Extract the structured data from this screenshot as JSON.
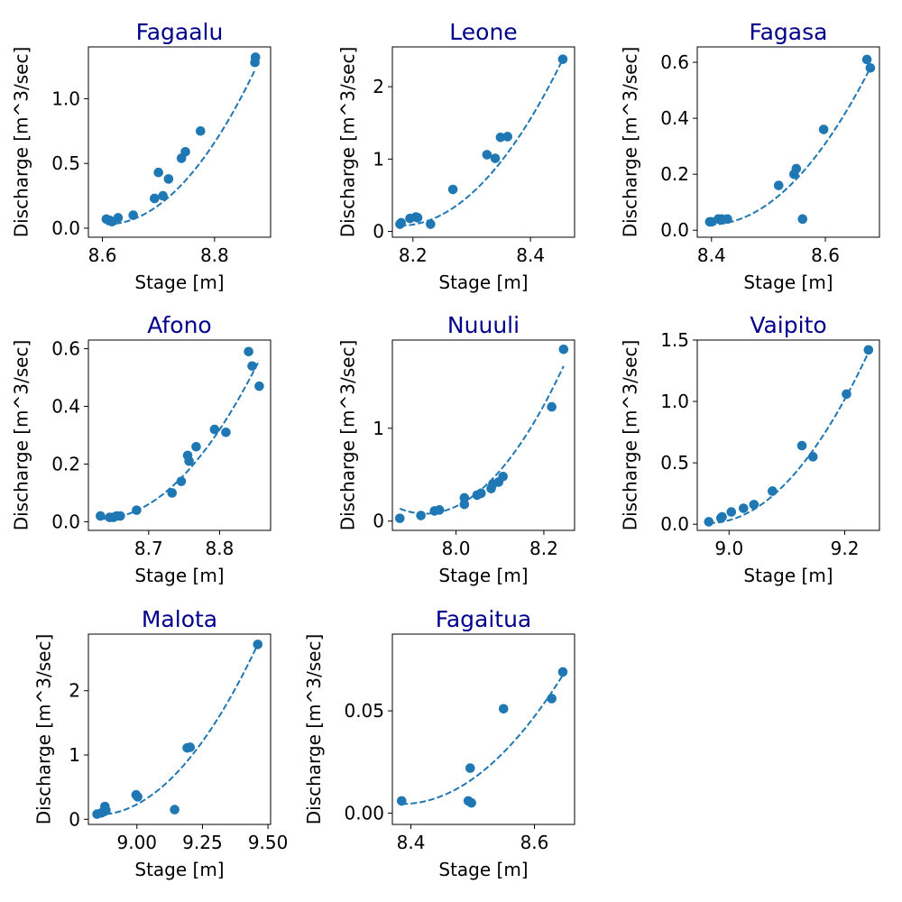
{
  "colors": {
    "marker": "#1f77b4",
    "fit": "#1f77b4",
    "title": "#00008b"
  },
  "chart_data": [
    {
      "type": "scatter",
      "title": "Fagaalu",
      "xlabel": "Stage [m]",
      "ylabel": "Discharge [m^3/sec]",
      "xlim": [
        8.575,
        8.9
      ],
      "ylim": [
        -0.07,
        1.4
      ],
      "xticks": [
        8.6,
        8.8
      ],
      "xtick_labels": [
        "8.6",
        "8.8"
      ],
      "yticks": [
        0.0,
        0.5,
        1.0
      ],
      "ytick_labels": [
        "0.0",
        "0.5",
        "1.0"
      ],
      "points": [
        [
          8.607,
          0.07
        ],
        [
          8.613,
          0.06
        ],
        [
          8.617,
          0.05
        ],
        [
          8.628,
          0.08
        ],
        [
          8.655,
          0.1
        ],
        [
          8.693,
          0.23
        ],
        [
          8.7,
          0.43
        ],
        [
          8.708,
          0.25
        ],
        [
          8.718,
          0.38
        ],
        [
          8.741,
          0.54
        ],
        [
          8.748,
          0.59
        ],
        [
          8.775,
          0.75
        ],
        [
          8.872,
          1.28
        ],
        [
          8.873,
          1.32
        ]
      ],
      "fit": {
        "type": "quadratic",
        "x_range": [
          8.607,
          8.873
        ],
        "y_range": [
          0.03,
          1.23
        ]
      }
    },
    {
      "type": "scatter",
      "title": "Leone",
      "xlabel": "Stage [m]",
      "ylabel": "Discharge [m^3/sec]",
      "xlim": [
        8.165,
        8.475
      ],
      "ylim": [
        -0.08,
        2.55
      ],
      "xticks": [
        8.2,
        8.4
      ],
      "xtick_labels": [
        "8.2",
        "8.4"
      ],
      "yticks": [
        0,
        1,
        2
      ],
      "ytick_labels": [
        "0",
        "1",
        "2"
      ],
      "points": [
        [
          8.178,
          0.1
        ],
        [
          8.18,
          0.12
        ],
        [
          8.195,
          0.18
        ],
        [
          8.205,
          0.2
        ],
        [
          8.208,
          0.19
        ],
        [
          8.23,
          0.1
        ],
        [
          8.268,
          0.58
        ],
        [
          8.326,
          1.06
        ],
        [
          8.34,
          1.01
        ],
        [
          8.349,
          1.3
        ],
        [
          8.361,
          1.31
        ],
        [
          8.455,
          2.38
        ]
      ],
      "fit": {
        "type": "quadratic",
        "x_range": [
          8.178,
          8.455
        ],
        "y_range": [
          0.08,
          2.38
        ]
      }
    },
    {
      "type": "scatter",
      "title": "Fagasa",
      "xlabel": "Stage [m]",
      "ylabel": "Discharge [m^3/sec]",
      "xlim": [
        8.375,
        8.695
      ],
      "ylim": [
        -0.025,
        0.655
      ],
      "xticks": [
        8.4,
        8.6
      ],
      "xtick_labels": [
        "8.4",
        "8.6"
      ],
      "yticks": [
        0.0,
        0.2,
        0.4,
        0.6
      ],
      "ytick_labels": [
        "0.0",
        "0.2",
        "0.4",
        "0.6"
      ],
      "points": [
        [
          8.397,
          0.03
        ],
        [
          8.4,
          0.03
        ],
        [
          8.412,
          0.04
        ],
        [
          8.418,
          0.04
        ],
        [
          8.428,
          0.04
        ],
        [
          8.518,
          0.16
        ],
        [
          8.545,
          0.2
        ],
        [
          8.549,
          0.22
        ],
        [
          8.56,
          0.04
        ],
        [
          8.597,
          0.36
        ],
        [
          8.673,
          0.61
        ],
        [
          8.679,
          0.58
        ]
      ],
      "fit": {
        "type": "quadratic",
        "x_range": [
          8.397,
          8.679
        ],
        "y_range": [
          0.02,
          0.58
        ]
      }
    },
    {
      "type": "scatter",
      "title": "Afono",
      "xlabel": "Stage [m]",
      "ylabel": "Discharge [m^3/sec]",
      "xlim": [
        8.615,
        8.872
      ],
      "ylim": [
        -0.03,
        0.63
      ],
      "xticks": [
        8.7,
        8.8
      ],
      "xtick_labels": [
        "8.7",
        "8.8"
      ],
      "yticks": [
        0.0,
        0.2,
        0.4,
        0.6
      ],
      "ytick_labels": [
        "0.0",
        "0.2",
        "0.4",
        "0.6"
      ],
      "points": [
        [
          8.632,
          0.02
        ],
        [
          8.645,
          0.015
        ],
        [
          8.65,
          0.015
        ],
        [
          8.655,
          0.02
        ],
        [
          8.66,
          0.02
        ],
        [
          8.683,
          0.04
        ],
        [
          8.733,
          0.1
        ],
        [
          8.746,
          0.14
        ],
        [
          8.755,
          0.23
        ],
        [
          8.757,
          0.21
        ],
        [
          8.767,
          0.26
        ],
        [
          8.793,
          0.32
        ],
        [
          8.809,
          0.31
        ],
        [
          8.841,
          0.59
        ],
        [
          8.846,
          0.54
        ],
        [
          8.856,
          0.47
        ]
      ],
      "fit": {
        "type": "quadratic",
        "x_range": [
          8.632,
          8.856
        ],
        "y_range": [
          0.01,
          0.56
        ]
      }
    },
    {
      "type": "scatter",
      "title": "Nuuuli",
      "xlabel": "Stage [m]",
      "ylabel": "Discharge [m^3/sec]",
      "xlim": [
        7.855,
        8.27
      ],
      "ylim": [
        -0.1,
        1.95
      ],
      "xticks": [
        8.0,
        8.2
      ],
      "xtick_labels": [
        "8.0",
        "8.2"
      ],
      "yticks": [
        0,
        1
      ],
      "ytick_labels": [
        "0",
        "1"
      ],
      "points": [
        [
          7.872,
          0.03
        ],
        [
          7.92,
          0.06
        ],
        [
          7.951,
          0.11
        ],
        [
          7.962,
          0.12
        ],
        [
          8.019,
          0.18
        ],
        [
          8.019,
          0.25
        ],
        [
          8.048,
          0.28
        ],
        [
          8.057,
          0.3
        ],
        [
          8.08,
          0.35
        ],
        [
          8.084,
          0.4
        ],
        [
          8.097,
          0.42
        ],
        [
          8.107,
          0.48
        ],
        [
          8.218,
          1.23
        ],
        [
          8.245,
          1.85
        ]
      ],
      "fit": {
        "type": "quadratic",
        "x_range": [
          7.872,
          8.245
        ],
        "y_range": [
          0.09,
          1.67
        ],
        "x_min": 7.93,
        "y_min": 0.08,
        "y_start": 0.13
      }
    },
    {
      "type": "scatter",
      "title": "Vaipito",
      "xlabel": "Stage [m]",
      "ylabel": "Discharge [m^3/sec]",
      "xlim": [
        8.945,
        9.26
      ],
      "ylim": [
        -0.05,
        1.5
      ],
      "xticks": [
        9.0,
        9.2
      ],
      "xtick_labels": [
        "9.0",
        "9.2"
      ],
      "yticks": [
        0.0,
        0.5,
        1.0,
        1.5
      ],
      "ytick_labels": [
        "0.0",
        "0.5",
        "1.0",
        "1.5"
      ],
      "points": [
        [
          8.965,
          0.02
        ],
        [
          8.986,
          0.05
        ],
        [
          8.988,
          0.06
        ],
        [
          9.004,
          0.1
        ],
        [
          9.025,
          0.13
        ],
        [
          9.043,
          0.16
        ],
        [
          9.075,
          0.27
        ],
        [
          9.126,
          0.64
        ],
        [
          9.145,
          0.55
        ],
        [
          9.203,
          1.06
        ],
        [
          9.241,
          1.42
        ]
      ],
      "fit": {
        "type": "quadratic",
        "x_range": [
          8.965,
          9.241
        ],
        "y_range": [
          0.01,
          1.4
        ]
      }
    },
    {
      "type": "scatter",
      "title": "Malota",
      "xlabel": "Stage [m]",
      "ylabel": "Discharge [m^3/sec]",
      "xlim": [
        8.815,
        9.51
      ],
      "ylim": [
        -0.08,
        2.88
      ],
      "xticks": [
        9.0,
        9.25,
        9.5
      ],
      "xtick_labels": [
        "9.00",
        "9.25",
        "9.50"
      ],
      "yticks": [
        0,
        1,
        2
      ],
      "ytick_labels": [
        "0",
        "1",
        "2"
      ],
      "points": [
        [
          8.848,
          0.08
        ],
        [
          8.865,
          0.1
        ],
        [
          8.875,
          0.12
        ],
        [
          8.878,
          0.2
        ],
        [
          8.882,
          0.14
        ],
        [
          8.997,
          0.38
        ],
        [
          9.003,
          0.35
        ],
        [
          9.144,
          0.15
        ],
        [
          9.192,
          1.11
        ],
        [
          9.203,
          1.12
        ],
        [
          9.461,
          2.72
        ]
      ],
      "fit": {
        "type": "quadratic",
        "x_range": [
          8.848,
          9.461
        ],
        "y_range": [
          0.07,
          2.72
        ]
      }
    },
    {
      "type": "scatter",
      "title": "Fagaitua",
      "xlabel": "Stage [m]",
      "ylabel": "Discharge [m^3/sec]",
      "xlim": [
        8.37,
        8.665
      ],
      "ylim": [
        -0.0055,
        0.0875
      ],
      "xticks": [
        8.4,
        8.6
      ],
      "xtick_labels": [
        "8.4",
        "8.6"
      ],
      "yticks": [
        0.0,
        0.05
      ],
      "ytick_labels": [
        "0.00",
        "0.05"
      ],
      "points": [
        [
          8.385,
          0.006
        ],
        [
          8.493,
          0.006
        ],
        [
          8.496,
          0.022
        ],
        [
          8.498,
          0.005
        ],
        [
          8.55,
          0.051
        ],
        [
          8.628,
          0.056
        ],
        [
          8.646,
          0.069
        ]
      ],
      "fit": {
        "type": "quadratic",
        "x_range": [
          8.385,
          8.646
        ],
        "y_range": [
          0.0045,
          0.0675
        ]
      }
    }
  ]
}
